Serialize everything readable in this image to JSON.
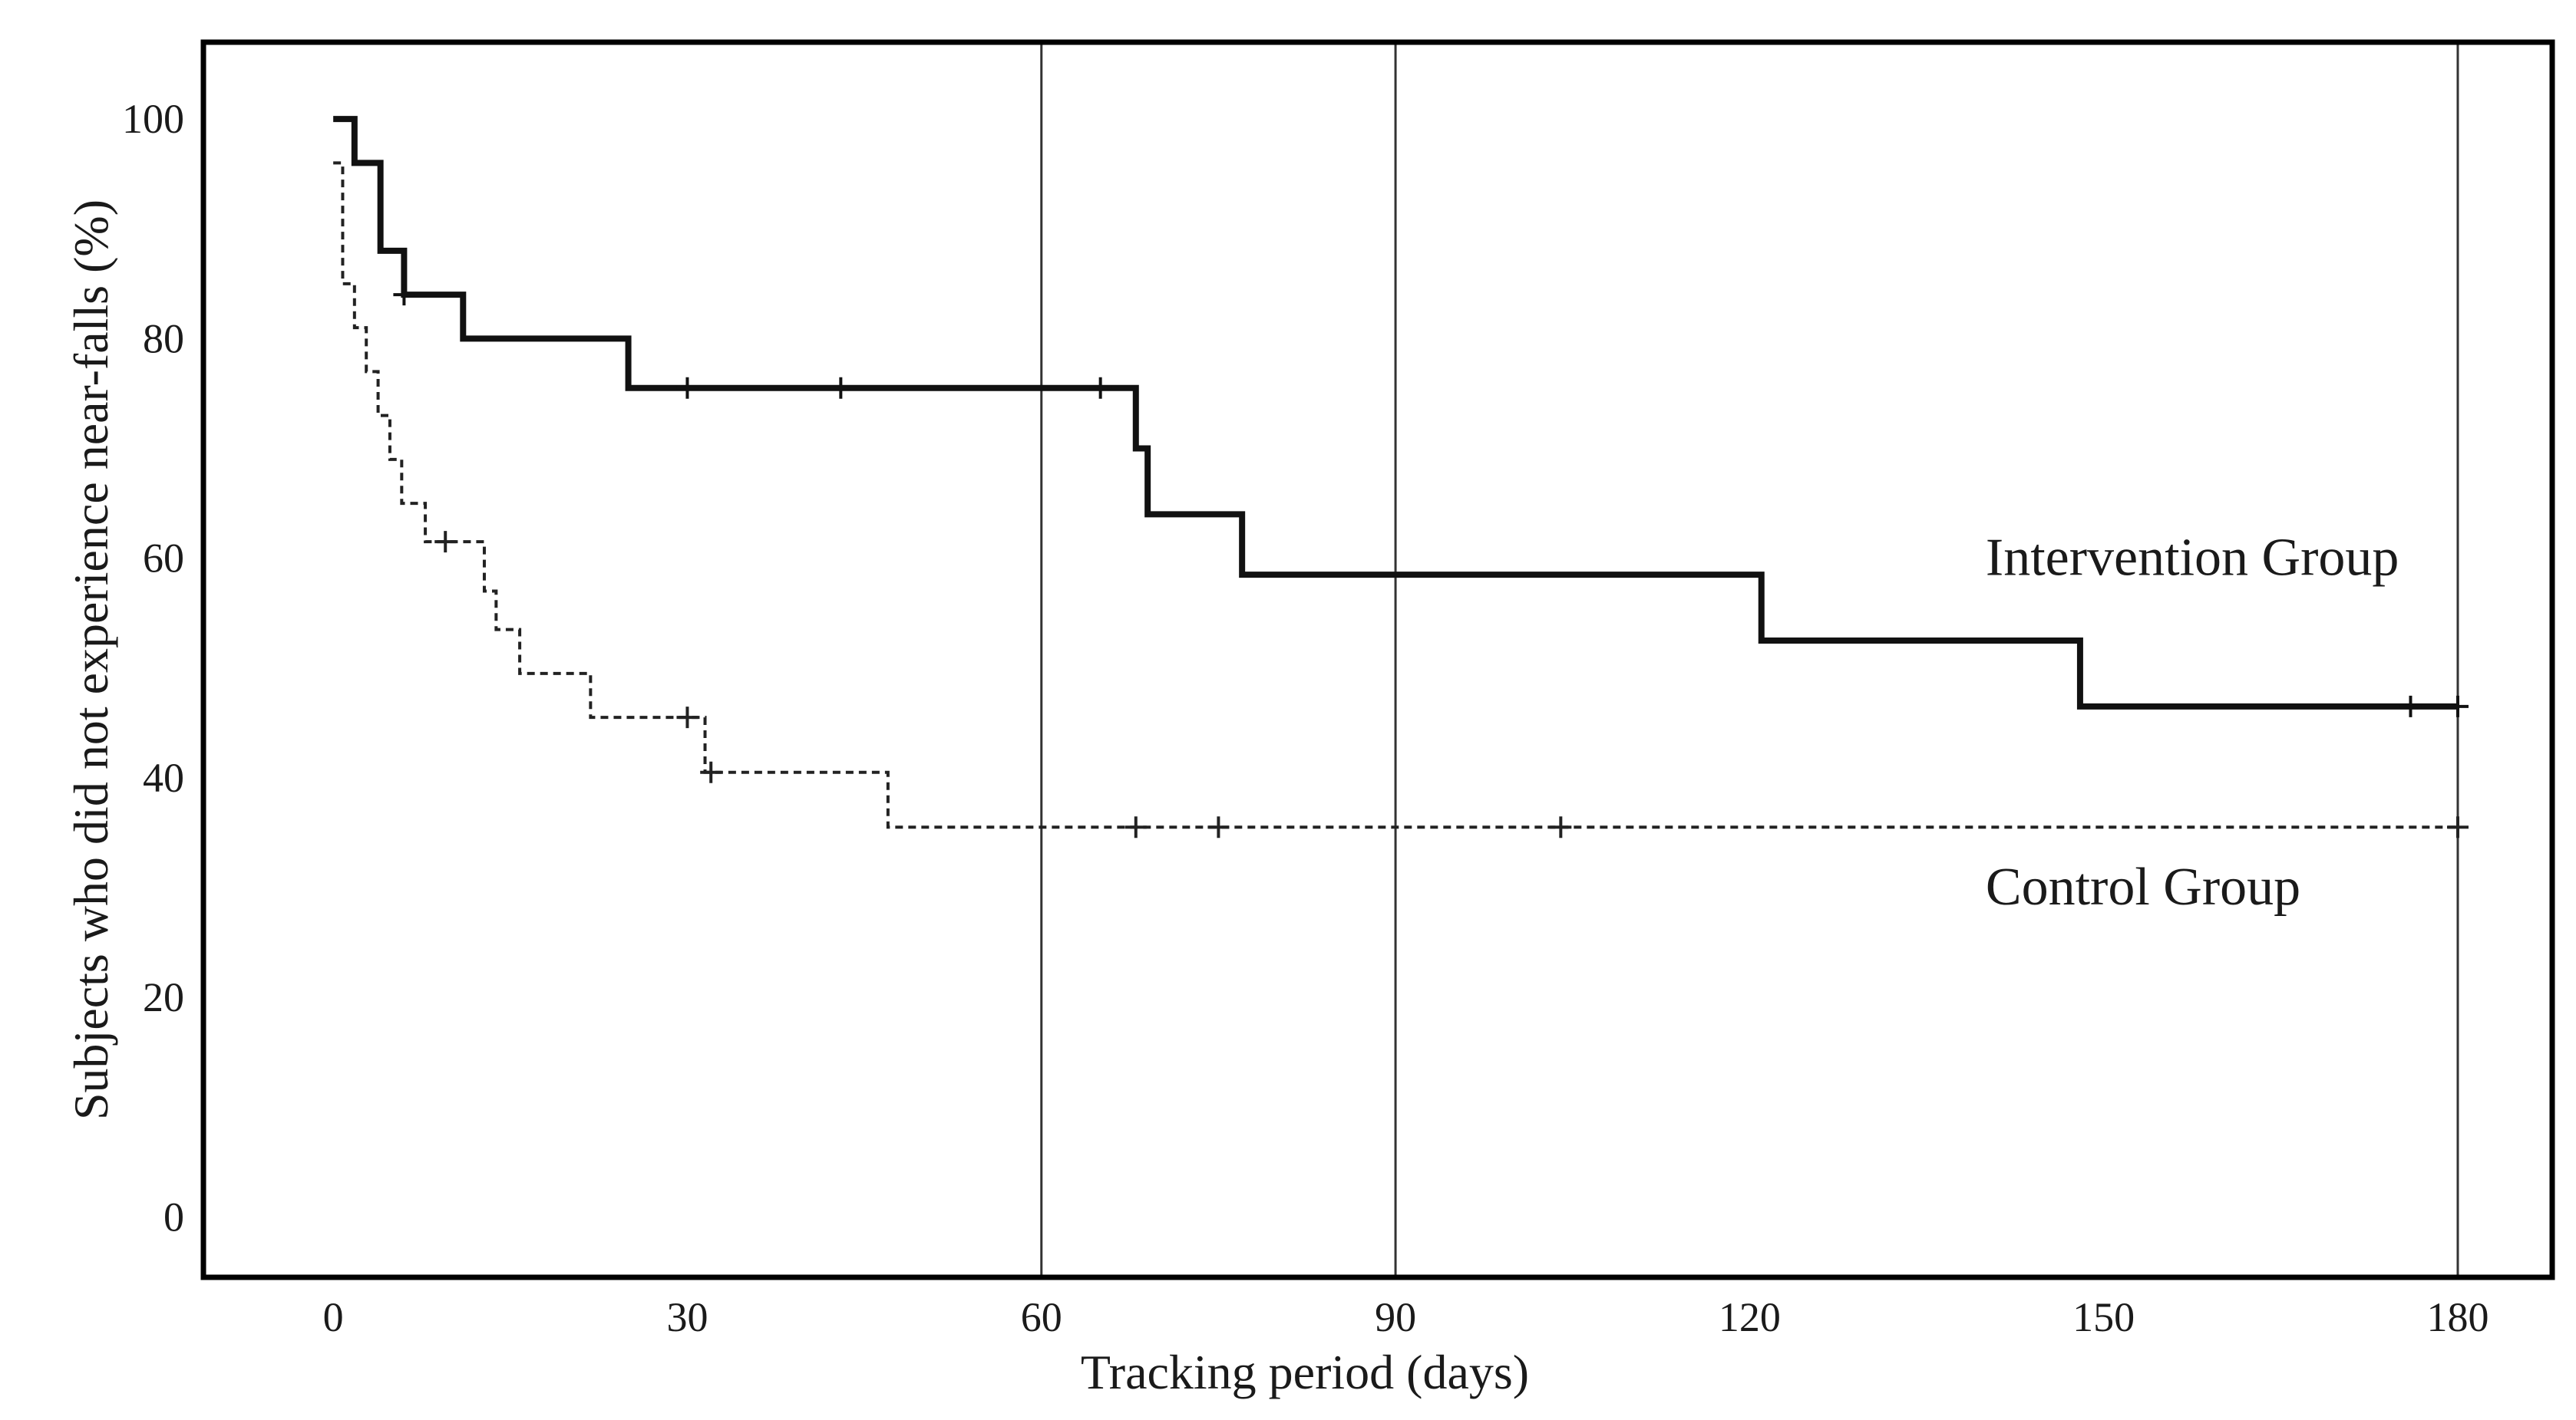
{
  "chart_data": {
    "type": "line",
    "title": "",
    "xlabel": "Tracking period (days)",
    "ylabel": "Subjects who did not experience near-falls (%)",
    "xlim": [
      -11,
      188
    ],
    "ylim": [
      -5.5,
      107
    ],
    "x_ticks": [
      0,
      30,
      60,
      90,
      120,
      150,
      180
    ],
    "y_ticks": [
      0,
      20,
      40,
      60,
      80,
      100
    ],
    "reference_lines_x": [
      60,
      90,
      180
    ],
    "grid": false,
    "legend": "none (series labelled directly on the plot)",
    "series": [
      {
        "name": "Intervention Group",
        "style": "solid-thick",
        "color": "#111111",
        "steps": [
          [
            0,
            100
          ],
          [
            1.8,
            96
          ],
          [
            4,
            88
          ],
          [
            6,
            84
          ],
          [
            11,
            80
          ],
          [
            25,
            75.5
          ],
          [
            68,
            70
          ],
          [
            69,
            64
          ],
          [
            77,
            58.5
          ],
          [
            121,
            52.5
          ],
          [
            148,
            46.5
          ],
          [
            180,
            46.5
          ]
        ],
        "censored": [
          [
            6,
            84
          ],
          [
            30,
            75.5
          ],
          [
            43,
            75.5
          ],
          [
            65,
            75.5
          ],
          [
            176,
            46.5
          ],
          [
            180,
            46.5
          ]
        ],
        "label_at": [
          140,
          60
        ]
      },
      {
        "name": "Control Group",
        "style": "dashed",
        "color": "#222222",
        "steps": [
          [
            0,
            96
          ],
          [
            0.8,
            85
          ],
          [
            1.8,
            81
          ],
          [
            2.8,
            77
          ],
          [
            3.8,
            73
          ],
          [
            4.8,
            69
          ],
          [
            5.8,
            65
          ],
          [
            7.8,
            61.5
          ],
          [
            12.8,
            57
          ],
          [
            13.8,
            53.5
          ],
          [
            15.8,
            49.5
          ],
          [
            21.8,
            45.5
          ],
          [
            31.5,
            40.5
          ],
          [
            47,
            35.5
          ],
          [
            180,
            35.5
          ]
        ],
        "censored": [
          [
            9.5,
            61.5
          ],
          [
            30,
            45.5
          ],
          [
            32,
            40.5
          ],
          [
            68,
            35.5
          ],
          [
            75,
            35.5
          ],
          [
            104,
            35.5
          ],
          [
            180,
            35.5
          ]
        ],
        "label_at": [
          140,
          30
        ]
      }
    ]
  }
}
